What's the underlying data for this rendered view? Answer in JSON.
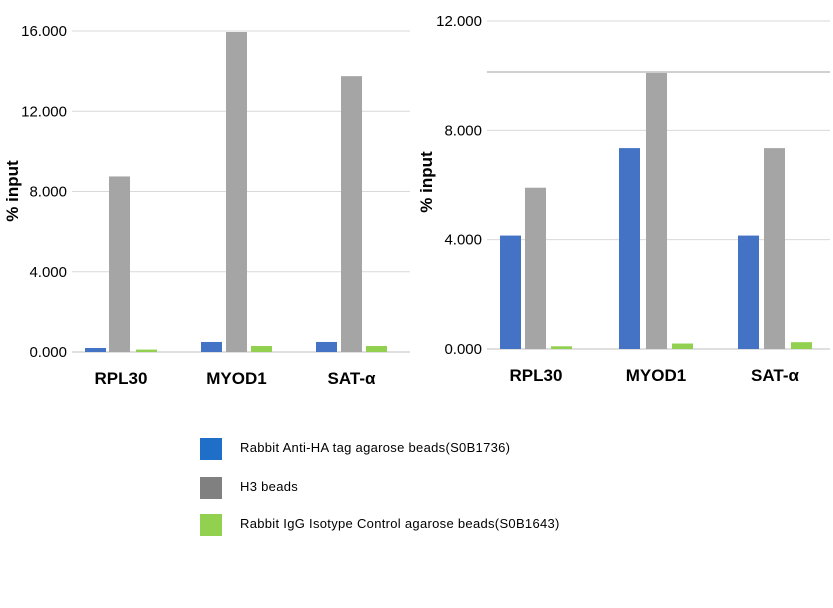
{
  "chart_data": [
    {
      "type": "bar",
      "ylabel": "% input",
      "yticks": [
        "0.000",
        "4.000",
        "8.000",
        "12.000",
        "16.000"
      ],
      "ylim": [
        0,
        16
      ],
      "grid": true,
      "categories": [
        "RPL30",
        "MYOD1",
        "SAT-α"
      ],
      "series": [
        {
          "name": "Rabbit Anti-HA tag agarose beads(S0B1736)",
          "color": "#4472C4",
          "values": [
            0.2,
            0.5,
            0.5
          ]
        },
        {
          "name": "H3 beads",
          "color": "#A5A5A5",
          "values": [
            8.75,
            15.95,
            13.75
          ]
        },
        {
          "name": "Rabbit IgG Isotype Control agarose beads(S0B1643)",
          "color": "#92D050",
          "values": [
            0.12,
            0.3,
            0.3
          ]
        }
      ]
    },
    {
      "type": "bar",
      "ylabel": "% input",
      "yticks": [
        "0.000",
        "4.000",
        "8.000",
        "12.000"
      ],
      "ylim": [
        0,
        12
      ],
      "grid": true,
      "categories": [
        "RPL30",
        "MYOD1",
        "SAT-α"
      ],
      "series": [
        {
          "name": "Rabbit Anti-HA tag agarose beads(S0B1736)",
          "color": "#4472C4",
          "values": [
            4.15,
            7.35,
            4.15
          ]
        },
        {
          "name": "H3 beads",
          "color": "#A5A5A5",
          "values": [
            5.9,
            10.1,
            7.35
          ]
        },
        {
          "name": "Rabbit IgG Isotype Control agarose beads(S0B1643)",
          "color": "#92D050",
          "values": [
            0.1,
            0.2,
            0.25
          ]
        }
      ]
    }
  ],
  "legend": [
    {
      "label": "Rabbit Anti-HA tag agarose beads(S0B1736)",
      "color": "#1F6FC9"
    },
    {
      "label": "H3 beads",
      "color": "#808080"
    },
    {
      "label": "Rabbit IgG Isotype Control agarose beads(S0B1643)",
      "color": "#92D050"
    }
  ]
}
